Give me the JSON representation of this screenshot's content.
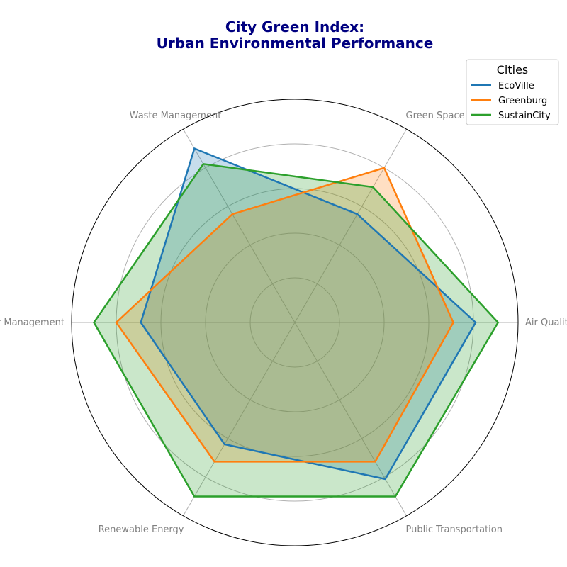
{
  "chart_data": {
    "type": "radar",
    "title_lines": [
      "City Green Index:",
      "Urban Environmental Performance"
    ],
    "categories": [
      "Air Quality",
      "Green Space",
      "Waste Management",
      "Water Management",
      "Renewable Energy",
      "Public Transportation"
    ],
    "rlim": [
      0,
      100
    ],
    "grid_levels": [
      20,
      40,
      60,
      80
    ],
    "grid": true,
    "radial_tick_labels_shown": false,
    "legend": {
      "title": "Cities",
      "placement": "top-right"
    },
    "series": [
      {
        "name": "EcoVille",
        "color": "#1f77b4",
        "values": [
          81,
          56,
          90,
          69,
          63,
          81
        ]
      },
      {
        "name": "Greenburg",
        "color": "#ff7f0e",
        "values": [
          71,
          80,
          56,
          80,
          72,
          72
        ]
      },
      {
        "name": "SustainCity",
        "color": "#2ca02c",
        "values": [
          91,
          70,
          82,
          90,
          90,
          90
        ]
      }
    ],
    "fill_opacity": 0.25
  }
}
